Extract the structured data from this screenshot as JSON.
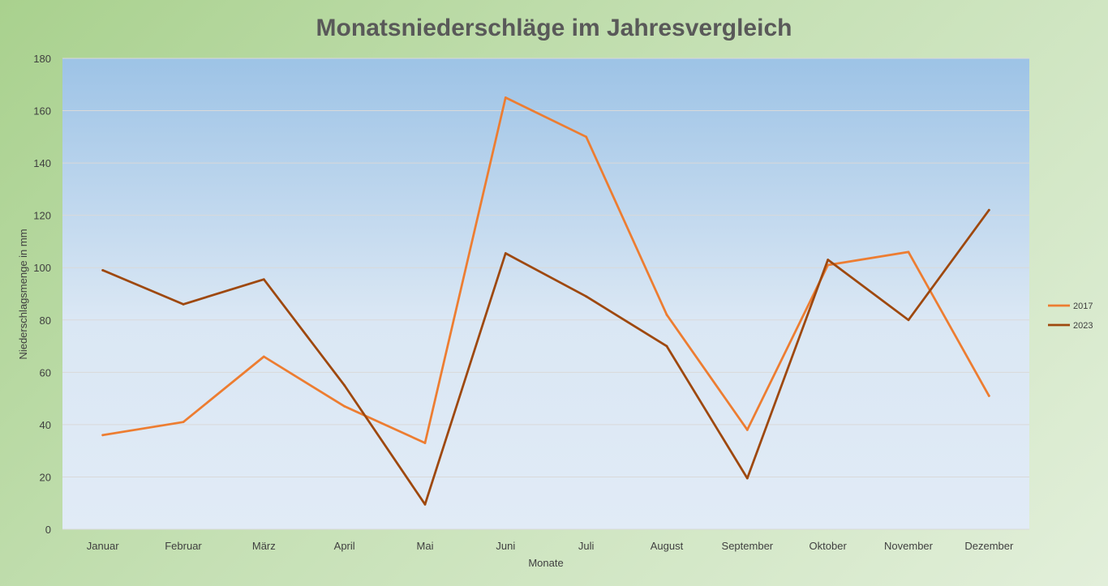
{
  "chart_data": {
    "type": "line",
    "title": "Monatsniederschläge im Jahresvergleich",
    "xlabel": "Monate",
    "ylabel": "Niederschlagsmenge in mm",
    "ylim": [
      0,
      180
    ],
    "yticks": [
      "0",
      "20",
      "40",
      "60",
      "80",
      "100",
      "120",
      "140",
      "160",
      "180"
    ],
    "grid": true,
    "legend_position": "right",
    "categories": [
      "Januar",
      "Februar",
      "März",
      "April",
      "Mai",
      "Juni",
      "Juli",
      "August",
      "September",
      "Oktober",
      "November",
      "Dezember"
    ],
    "series": [
      {
        "name": "2017",
        "color": "#ed7d31",
        "values": [
          36,
          41,
          66,
          47,
          33,
          165,
          150,
          82,
          38,
          101,
          106,
          51
        ]
      },
      {
        "name": "2023",
        "color": "#9e480e",
        "values": [
          99,
          86,
          95.5,
          55,
          9.5,
          105.5,
          89,
          70,
          19.5,
          103,
          80,
          122
        ]
      }
    ]
  }
}
